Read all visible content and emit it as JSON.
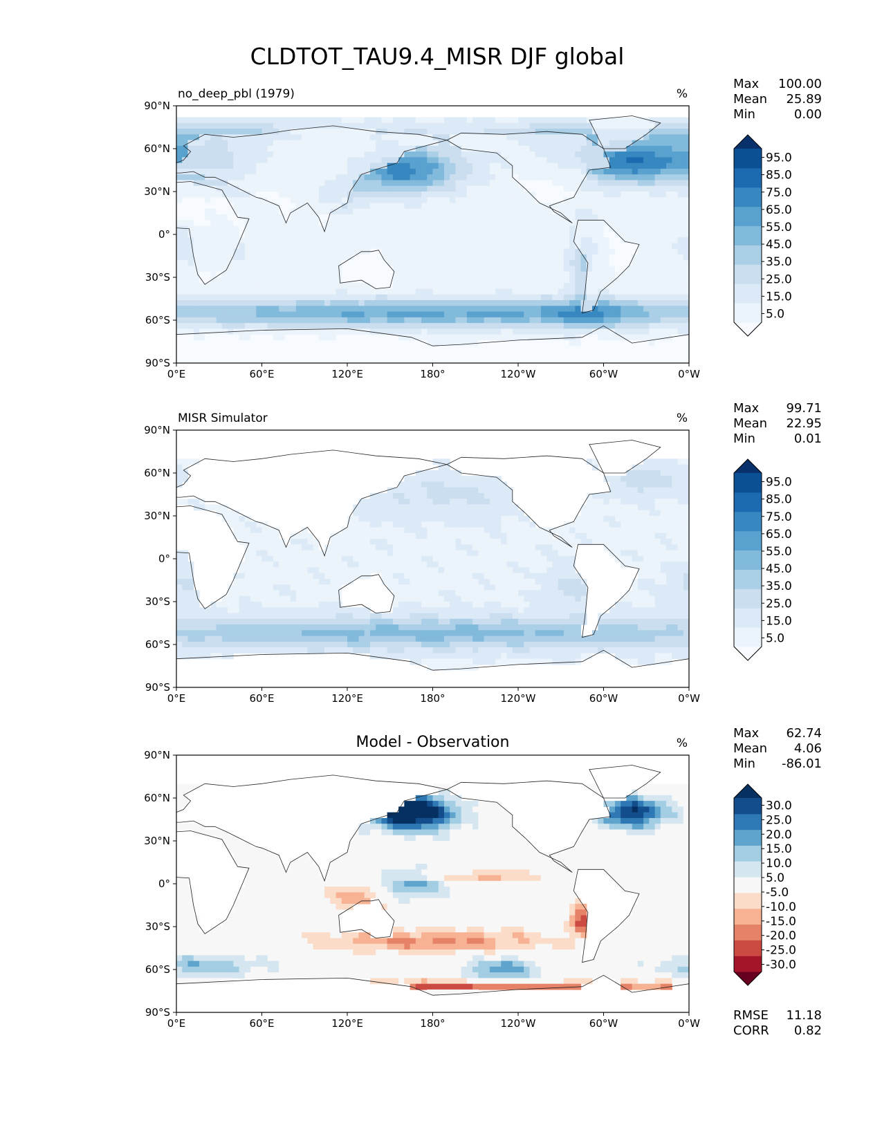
{
  "title": "CLDTOT_TAU9.4_MISR DJF global",
  "chart_data": [
    {
      "type": "heatmap",
      "panel_title_left": "no_deep_pbl (1979)",
      "panel_title_center": "",
      "units": "%",
      "stats": [
        {
          "label": "Max",
          "value": "100.00"
        },
        {
          "label": "Mean",
          "value": "25.89"
        },
        {
          "label": "Min",
          "value": "0.00"
        }
      ],
      "colorbar": {
        "ticks": [
          "95.0",
          "85.0",
          "75.0",
          "65.0",
          "55.0",
          "45.0",
          "35.0",
          "25.0",
          "15.0",
          "5.0"
        ],
        "colors": [
          "#f7fbff",
          "#ebf3fb",
          "#dceaf7",
          "#cadef0",
          "#abcfe6",
          "#82badb",
          "#59a1cf",
          "#3787c0",
          "#1c6aaf",
          "#0b4f94",
          "#08306b"
        ]
      },
      "xticks": [
        "0°E",
        "60°E",
        "120°E",
        "180°",
        "120°W",
        "60°W",
        "0°W"
      ],
      "yticks": [
        "90°N",
        "60°N",
        "30°N",
        "0°",
        "30°S",
        "60°S",
        "90°S"
      ],
      "field": {
        "base": 14,
        "features": [
          {
            "lon": 160,
            "lat": 45,
            "slon": 28,
            "slat": 11,
            "amp": 62
          },
          {
            "lon": 320,
            "lat": 50,
            "slon": 25,
            "slat": 10,
            "amp": 60
          },
          {
            "lon": 25,
            "lat": 52,
            "slon": 30,
            "slat": 12,
            "amp": 48
          },
          {
            "lon": 180,
            "lat": -55,
            "slon": 180,
            "slat": 7,
            "amp": 48
          },
          {
            "lon": 290,
            "lat": -55,
            "slon": 20,
            "slat": 8,
            "amp": 22
          },
          {
            "lon": 0,
            "lat": 70,
            "slon": 180,
            "slat": 7,
            "amp": 22
          },
          {
            "lon": 270,
            "lat": 58,
            "slon": 25,
            "slat": 10,
            "amp": 28
          },
          {
            "lon": 288,
            "lat": -15,
            "slon": 8,
            "slat": 18,
            "amp": 32
          },
          {
            "lon": 110,
            "lat": 28,
            "slon": 14,
            "slat": 8,
            "amp": 28
          },
          {
            "lon": 20,
            "lat": -8,
            "slon": 18,
            "slat": 10,
            "amp": 18
          }
        ],
        "lat_max": 82,
        "lat_min": -90
      }
    },
    {
      "type": "heatmap",
      "panel_title_left": "MISR Simulator",
      "panel_title_center": "",
      "units": "%",
      "stats": [
        {
          "label": "Max",
          "value": "99.71"
        },
        {
          "label": "Mean",
          "value": "22.95"
        },
        {
          "label": "Min",
          "value": "0.01"
        }
      ],
      "colorbar": {
        "ticks": [
          "95.0",
          "85.0",
          "75.0",
          "65.0",
          "55.0",
          "45.0",
          "35.0",
          "25.0",
          "15.0",
          "5.0"
        ],
        "colors": [
          "#f7fbff",
          "#ebf3fb",
          "#dceaf7",
          "#cadef0",
          "#abcfe6",
          "#82badb",
          "#59a1cf",
          "#3787c0",
          "#1c6aaf",
          "#0b4f94",
          "#08306b"
        ]
      },
      "xticks": [
        "0°E",
        "60°E",
        "120°E",
        "180°",
        "120°W",
        "60°W",
        "0°W"
      ],
      "yticks": [
        "90°N",
        "60°N",
        "30°N",
        "0°",
        "30°S",
        "60°S",
        "90°S"
      ],
      "field": {
        "base": 18,
        "features": [
          {
            "lon": 180,
            "lat": -52,
            "slon": 180,
            "slat": 8,
            "amp": 36
          },
          {
            "lon": 190,
            "lat": 45,
            "slon": 40,
            "slat": 12,
            "amp": 14
          },
          {
            "lon": 330,
            "lat": 55,
            "slon": 20,
            "slat": 8,
            "amp": 18
          },
          {
            "lon": 280,
            "lat": -20,
            "slon": 15,
            "slat": 10,
            "amp": 16
          },
          {
            "lon": 5,
            "lat": -18,
            "slon": 15,
            "slat": 10,
            "amp": 14
          }
        ],
        "lat_max": 68,
        "lat_min": -76,
        "ocean_only": true
      }
    },
    {
      "type": "heatmap",
      "panel_title_left": "",
      "panel_title_center": "Model - Observation",
      "units": "%",
      "stats": [
        {
          "label": "Max",
          "value": "62.74"
        },
        {
          "label": "Mean",
          "value": "4.06"
        },
        {
          "label": "Min",
          "value": "-86.01"
        }
      ],
      "colorbar": {
        "ticks": [
          "30.0",
          "25.0",
          "20.0",
          "15.0",
          "10.0",
          "5.0",
          "-5.0",
          "-10.0",
          "-15.0",
          "-20.0",
          "-25.0",
          "-30.0"
        ],
        "colors": [
          "#67001f",
          "#a51529",
          "#cb4b43",
          "#e68267",
          "#f6b293",
          "#fbdcc9",
          "#f7f7f7",
          "#d5e6f1",
          "#a2cde3",
          "#5fa4cc",
          "#2e78b5",
          "#134d8c",
          "#053061"
        ],
        "bounds": [
          -35,
          -30,
          -25,
          -20,
          -15,
          -10,
          -5,
          5,
          10,
          15,
          20,
          25,
          30,
          35
        ]
      },
      "xticks": [
        "0°E",
        "60°E",
        "120°E",
        "180°",
        "120°W",
        "60°W",
        "0°W"
      ],
      "yticks": [
        "90°N",
        "60°N",
        "30°N",
        "0°",
        "30°S",
        "60°S",
        "90°S"
      ],
      "error_stats": [
        {
          "label": "RMSE",
          "value": "11.18"
        },
        {
          "label": "CORR",
          "value": "0.82"
        }
      ],
      "field": {
        "base": 0,
        "features": [
          {
            "lon": 165,
            "lat": 50,
            "slon": 22,
            "slat": 9,
            "amp": 40
          },
          {
            "lon": 320,
            "lat": 50,
            "slon": 18,
            "slat": 8,
            "amp": 30
          },
          {
            "lon": 165,
            "lat": 0,
            "slon": 18,
            "slat": 8,
            "amp": 18
          },
          {
            "lon": 230,
            "lat": -60,
            "slon": 20,
            "slat": 6,
            "amp": 18
          },
          {
            "lon": 20,
            "lat": -58,
            "slon": 30,
            "slat": 6,
            "amp": 14
          },
          {
            "lon": 180,
            "lat": -40,
            "slon": 60,
            "slat": 6,
            "amp": -16
          },
          {
            "lon": 285,
            "lat": -25,
            "slon": 6,
            "slat": 8,
            "amp": -24
          },
          {
            "lon": 180,
            "lat": -71,
            "slon": 180,
            "slat": 2,
            "amp": -24
          },
          {
            "lon": 210,
            "lat": 5,
            "slon": 40,
            "slat": 3,
            "amp": -12
          },
          {
            "lon": 130,
            "lat": -10,
            "slon": 15,
            "slat": 8,
            "amp": -14
          }
        ],
        "lat_max": 68,
        "lat_min": -76,
        "ocean_only": true,
        "diverging": true
      }
    }
  ]
}
